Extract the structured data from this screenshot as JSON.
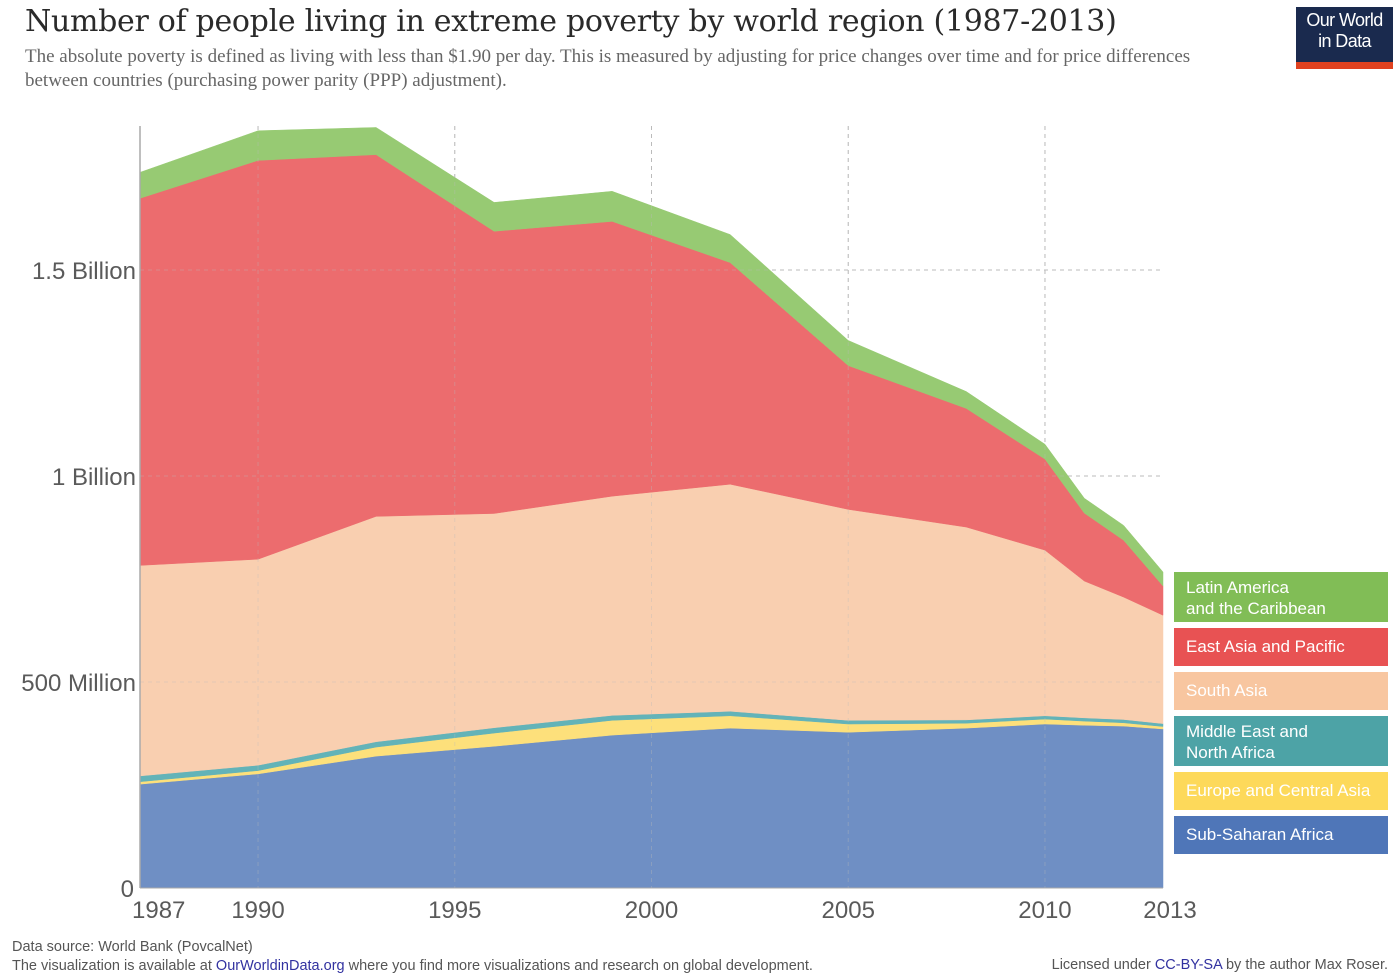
{
  "header": {
    "title": "Number of people living in extreme poverty by world region (1987-2013)",
    "subtitle": "The absolute poverty is defined as living with less than $1.90 per day. This is measured by adjusting for price changes over time and for price differences between countries (purchasing power parity (PPP) adjustment).",
    "logo_line1": "Our World",
    "logo_line2": "in Data"
  },
  "footer": {
    "source": "Data source: World Bank (PovcalNet)",
    "availability_prefix": "The visualization is available at ",
    "availability_link": "OurWorldinData.org",
    "availability_suffix": " where you find more visualizations and research on global development.",
    "license_prefix": "Licensed under ",
    "license_link": "CC-BY-SA",
    "license_suffix": " by the author Max Roser."
  },
  "chart_data": {
    "type": "area",
    "stacked": true,
    "title": "Number of people living in extreme poverty by world region (1987-2013)",
    "xlabel": "",
    "ylabel": "",
    "x": [
      1987,
      1990,
      1993,
      1996,
      1999,
      2002,
      2005,
      2008,
      2010,
      2011,
      2012,
      2013
    ],
    "xlim": [
      1987,
      2013
    ],
    "ylim": [
      0,
      1850000000
    ],
    "x_ticks": [
      1987,
      1990,
      1995,
      2000,
      2005,
      2010,
      2013
    ],
    "y_ticks": [
      {
        "value": 0,
        "label": "0"
      },
      {
        "value": 500000000,
        "label": "500 Million"
      },
      {
        "value": 1000000000,
        "label": "1 Billion"
      },
      {
        "value": 1500000000,
        "label": "1.5 Billion"
      }
    ],
    "grid": true,
    "legend_position": "right",
    "series": [
      {
        "name": "Sub-Saharan Africa",
        "color": "#6f8fc4",
        "legend_color": "#4f76b8",
        "values": [
          252000000,
          277000000,
          320000000,
          344000000,
          371000000,
          388000000,
          378000000,
          388000000,
          398000000,
          395000000,
          393000000,
          386000000
        ]
      },
      {
        "name": "Europe and Central Asia",
        "color": "#fde07b",
        "legend_color": "#fdd95a",
        "values": [
          6000000,
          8000000,
          22000000,
          32000000,
          36000000,
          30000000,
          20000000,
          12000000,
          12000000,
          10000000,
          8000000,
          6000000
        ]
      },
      {
        "name": "Middle East and North Africa",
        "color": "#63b3b8",
        "legend_color": "#4da3a6",
        "values": [
          14000000,
          13000000,
          13000000,
          13000000,
          12000000,
          11000000,
          9000000,
          8000000,
          8000000,
          8000000,
          8000000,
          7000000
        ]
      },
      {
        "name": "South Asia",
        "color": "#f9cfb0",
        "legend_color": "#f8c6a0",
        "values": [
          511000000,
          500000000,
          547000000,
          520000000,
          532000000,
          551000000,
          512000000,
          468000000,
          402000000,
          332000000,
          297000000,
          263000000
        ]
      },
      {
        "name": "East Asia and Pacific",
        "color": "#ec6c6e",
        "legend_color": "#e85253",
        "values": [
          891000000,
          968000000,
          878000000,
          685000000,
          667000000,
          538000000,
          349000000,
          288000000,
          221000000,
          165000000,
          138000000,
          71000000
        ]
      },
      {
        "name": "Latin America and the Caribbean",
        "color": "#97ca73",
        "legend_color": "#81bd56",
        "values": [
          63000000,
          72000000,
          66000000,
          70000000,
          73000000,
          68000000,
          61000000,
          41000000,
          36000000,
          36000000,
          36000000,
          34000000
        ]
      }
    ]
  }
}
